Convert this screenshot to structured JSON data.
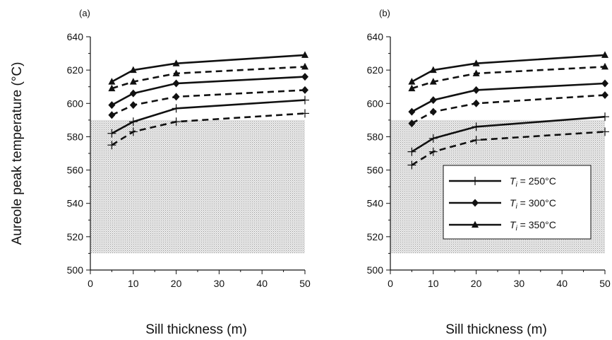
{
  "chart_data": [
    {
      "type": "line",
      "panel_label": "(a)",
      "xlabel": "Sill thickness (m)",
      "ylabel": "Aureole peak temperature (°C)",
      "xlim": [
        0,
        50
      ],
      "ylim": [
        500,
        640
      ],
      "xticks": [
        0,
        10,
        20,
        30,
        40,
        50
      ],
      "yticks": [
        500,
        520,
        540,
        560,
        580,
        600,
        620,
        640
      ],
      "grid": false,
      "shaded_region": {
        "x": [
          0,
          50
        ],
        "y": [
          510,
          590
        ],
        "color": "#c8c8c8"
      },
      "x": [
        5,
        10,
        20,
        50
      ],
      "series": [
        {
          "name": "Ti = 250°C",
          "marker": "plus",
          "dash": "solid",
          "values": [
            582,
            589,
            597,
            602
          ]
        },
        {
          "marker": "plus",
          "dash": "dashed",
          "values": [
            575,
            583,
            589,
            594
          ]
        },
        {
          "name": "Ti = 300°C",
          "marker": "diamond",
          "dash": "solid",
          "values": [
            599,
            606,
            612,
            616
          ]
        },
        {
          "marker": "diamond",
          "dash": "dashed",
          "values": [
            593,
            599,
            604,
            608
          ]
        },
        {
          "name": "Ti = 350°C",
          "marker": "triangle",
          "dash": "solid",
          "values": [
            613,
            620,
            624,
            629
          ]
        },
        {
          "marker": "triangle",
          "dash": "dashed",
          "values": [
            609,
            613,
            618,
            622
          ]
        }
      ]
    },
    {
      "type": "line",
      "panel_label": "(b)",
      "xlabel": "Sill thickness (m)",
      "ylabel": "",
      "xlim": [
        0,
        50
      ],
      "ylim": [
        500,
        640
      ],
      "xticks": [
        0,
        10,
        20,
        30,
        40,
        50
      ],
      "yticks": [
        500,
        520,
        540,
        560,
        580,
        600,
        620,
        640
      ],
      "grid": false,
      "shaded_region": {
        "x": [
          0,
          50
        ],
        "y": [
          510,
          590
        ],
        "color": "#c8c8c8"
      },
      "x": [
        5,
        10,
        20,
        50
      ],
      "series": [
        {
          "name": "Ti = 250°C",
          "marker": "plus",
          "dash": "solid",
          "values": [
            571,
            579,
            586,
            592
          ]
        },
        {
          "marker": "plus",
          "dash": "dashed",
          "values": [
            563,
            571,
            578,
            583
          ]
        },
        {
          "name": "Ti = 300°C",
          "marker": "diamond",
          "dash": "solid",
          "values": [
            595,
            602,
            608,
            612
          ]
        },
        {
          "marker": "diamond",
          "dash": "dashed",
          "values": [
            588,
            595,
            600,
            605
          ]
        },
        {
          "name": "Ti = 350°C",
          "marker": "triangle",
          "dash": "solid",
          "values": [
            613,
            620,
            624,
            629
          ]
        },
        {
          "marker": "triangle",
          "dash": "dashed",
          "values": [
            609,
            613,
            618,
            622
          ]
        }
      ],
      "legend": {
        "placement": "center-right",
        "entries": [
          {
            "symbol": "T",
            "subscript": "i",
            "text": " = 250°C",
            "marker": "plus"
          },
          {
            "symbol": "T",
            "subscript": "i",
            "text": " = 300°C",
            "marker": "diamond"
          },
          {
            "symbol": "T",
            "subscript": "i",
            "text": " = 350°C",
            "marker": "triangle"
          }
        ]
      }
    }
  ]
}
